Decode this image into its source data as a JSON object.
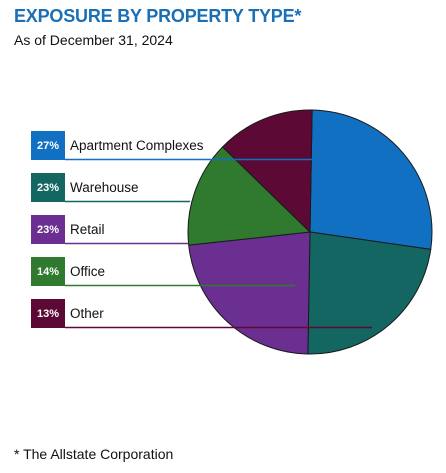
{
  "title": "EXPOSURE BY PROPERTY TYPE*",
  "subtitle": "As of December 31, 2024",
  "footnote": "* The Allstate Corporation",
  "chart_data": {
    "type": "pie",
    "title": "EXPOSURE BY PROPERTY TYPE*",
    "subtitle": "As of December 31, 2024",
    "unit": "%",
    "slices": [
      {
        "name": "Apartment Complexes",
        "value": 27,
        "label": "27%",
        "color": "#1170c2"
      },
      {
        "name": "Warehouse",
        "value": 23,
        "label": "23%",
        "color": "#136661"
      },
      {
        "name": "Retail",
        "value": 23,
        "label": "23%",
        "color": "#6a2f91"
      },
      {
        "name": "Office",
        "value": 14,
        "label": "14%",
        "color": "#2f7a2e"
      },
      {
        "name": "Other",
        "value": 13,
        "label": "13%",
        "color": "#5c0a35"
      }
    ],
    "legend_placement": "left"
  }
}
